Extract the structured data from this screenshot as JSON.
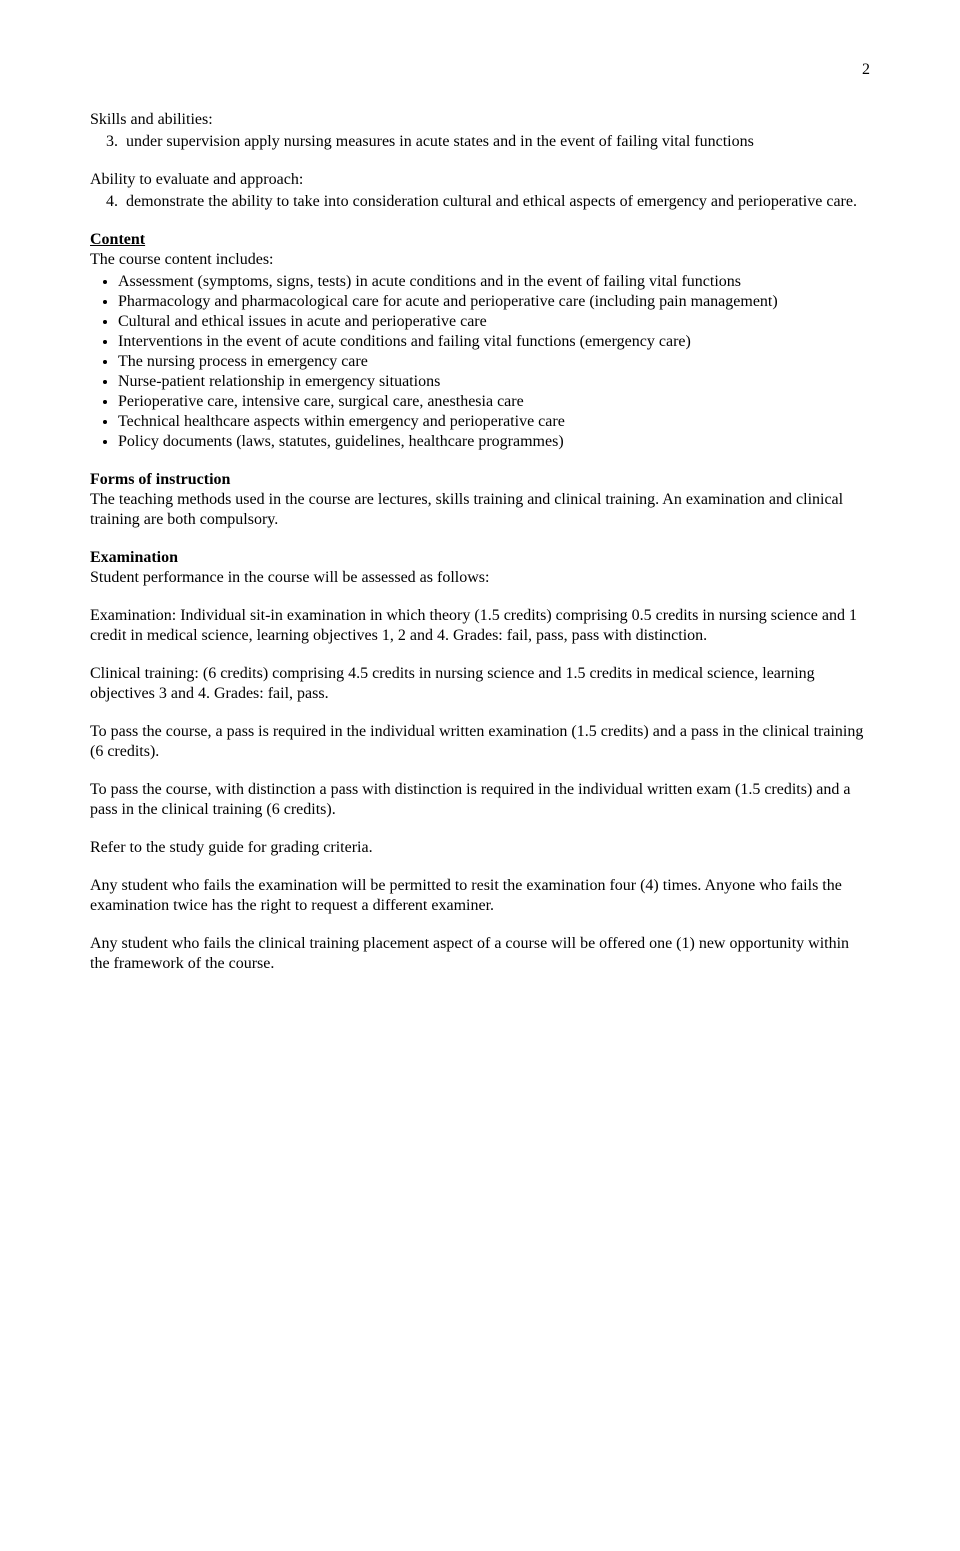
{
  "page_number": "2",
  "skills": {
    "heading": "Skills and abilities:",
    "item3": "under supervision apply nursing measures in acute states and in the event of failing vital functions"
  },
  "ability": {
    "heading": "Ability to evaluate and approach:",
    "item4": "demonstrate the ability to take into consideration cultural and ethical aspects of emergency and perioperative care."
  },
  "content": {
    "heading": "Content",
    "intro": "The course content includes:",
    "items": [
      "Assessment (symptoms, signs, tests) in acute conditions and in the event of failing vital functions",
      "Pharmacology and pharmacological care for acute and perioperative care (including pain management)",
      "Cultural and ethical issues in acute and perioperative care",
      "Interventions in the event of acute conditions and failing vital functions (emergency care)",
      "The nursing process in emergency care",
      "Nurse-patient relationship in emergency situations",
      "Perioperative care, intensive care, surgical care, anesthesia care",
      "Technical healthcare aspects within emergency and perioperative care",
      "Policy documents (laws, statutes, guidelines, healthcare programmes)"
    ]
  },
  "forms": {
    "heading": "Forms of instruction",
    "text": "The teaching methods used in the course are lectures, skills training and clinical training. An examination and clinical training are both compulsory."
  },
  "exam": {
    "heading": "Examination",
    "intro": "Student performance in the course will be assessed as follows:",
    "p1": "Examination: Individual sit-in examination in which theory (1.5 credits) comprising 0.5 credits in nursing science and 1 credit in medical science, learning objectives 1, 2 and 4. Grades: fail, pass, pass with distinction.",
    "p2": "Clinical training: (6 credits) comprising 4.5 credits in nursing science and 1.5 credits in medical science, learning objectives 3 and 4. Grades: fail, pass.",
    "p3": "To pass the course, a pass is required in the individual written examination (1.5 credits) and a pass in the clinical training (6 credits).",
    "p4": "To pass the course, with distinction a pass with distinction is required in the individual written exam (1.5 credits) and a pass in the clinical training (6 credits).",
    "p5": "Refer to the study guide for grading criteria.",
    "p6": "Any student who fails the examination will be permitted to resit the examination four (4) times. Anyone who fails the examination twice has the right to request a different examiner.",
    "p7": "Any student who fails the clinical training placement aspect of a course will be offered one (1) new opportunity within the framework of the course."
  }
}
